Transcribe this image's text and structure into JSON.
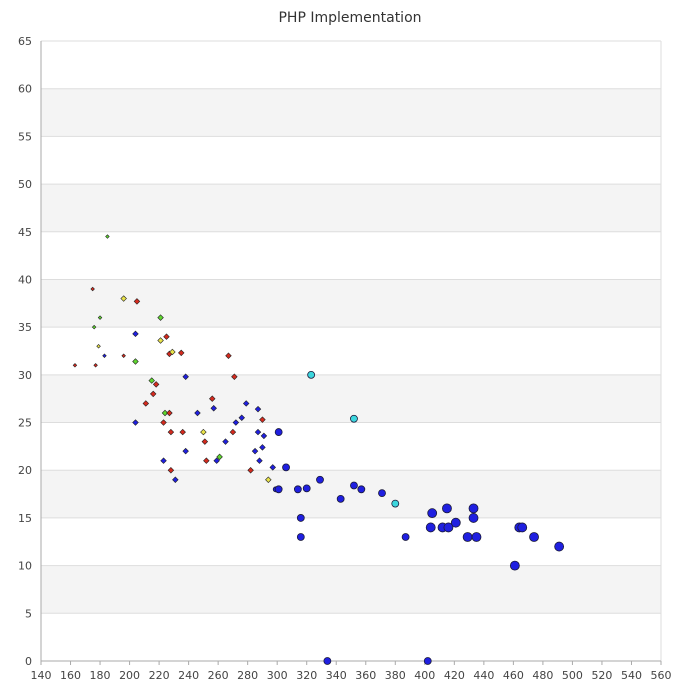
{
  "chart_data": {
    "type": "scatter",
    "title": "PHP Implementation",
    "xlabel": "",
    "ylabel": "",
    "xlim": [
      140,
      560
    ],
    "ylim": [
      0,
      65
    ],
    "x_ticks": [
      140,
      160,
      180,
      200,
      220,
      240,
      260,
      280,
      300,
      320,
      340,
      360,
      380,
      400,
      420,
      440,
      460,
      480,
      500,
      520,
      540,
      560
    ],
    "y_ticks": [
      0,
      5,
      10,
      15,
      20,
      25,
      30,
      35,
      40,
      45,
      50,
      55,
      60,
      65
    ],
    "grid": "horizontal bands",
    "colors": {
      "band": "#f4f4f4",
      "gridline": "#dddddd",
      "axis": "#aaaaaa",
      "blue": "#1f1fe0",
      "cyan": "#3cd6dd",
      "red": "#d42a1e",
      "green": "#5ed62e",
      "yellow": "#e9e34a"
    },
    "points": [
      {
        "x": 185,
        "y": 44.5,
        "size": 1,
        "color": "green"
      },
      {
        "x": 175,
        "y": 39,
        "size": 1,
        "color": "red"
      },
      {
        "x": 196,
        "y": 38,
        "size": 2,
        "color": "yellow"
      },
      {
        "x": 205,
        "y": 37.7,
        "size": 2,
        "color": "red"
      },
      {
        "x": 180,
        "y": 36,
        "size": 1,
        "color": "green"
      },
      {
        "x": 176,
        "y": 35,
        "size": 1,
        "color": "green"
      },
      {
        "x": 221,
        "y": 36,
        "size": 2,
        "color": "green"
      },
      {
        "x": 204,
        "y": 34.3,
        "size": 2,
        "color": "blue"
      },
      {
        "x": 225,
        "y": 34,
        "size": 2,
        "color": "red"
      },
      {
        "x": 221,
        "y": 33.6,
        "size": 2,
        "color": "yellow"
      },
      {
        "x": 179,
        "y": 33,
        "size": 1,
        "color": "yellow"
      },
      {
        "x": 183,
        "y": 32,
        "size": 1,
        "color": "blue"
      },
      {
        "x": 196,
        "y": 32,
        "size": 1,
        "color": "red"
      },
      {
        "x": 227,
        "y": 32.2,
        "size": 2,
        "color": "red"
      },
      {
        "x": 229,
        "y": 32.4,
        "size": 2,
        "color": "yellow"
      },
      {
        "x": 235,
        "y": 32.3,
        "size": 2,
        "color": "red"
      },
      {
        "x": 267,
        "y": 32,
        "size": 2,
        "color": "red"
      },
      {
        "x": 204,
        "y": 31.4,
        "size": 2,
        "color": "green"
      },
      {
        "x": 163,
        "y": 31,
        "size": 1,
        "color": "red"
      },
      {
        "x": 177,
        "y": 31,
        "size": 1,
        "color": "red"
      },
      {
        "x": 271,
        "y": 29.8,
        "size": 2,
        "color": "red"
      },
      {
        "x": 238,
        "y": 29.8,
        "size": 2,
        "color": "blue"
      },
      {
        "x": 215,
        "y": 29.4,
        "size": 2,
        "color": "green"
      },
      {
        "x": 218,
        "y": 29,
        "size": 2,
        "color": "red"
      },
      {
        "x": 216,
        "y": 28,
        "size": 2,
        "color": "red"
      },
      {
        "x": 211,
        "y": 27,
        "size": 2,
        "color": "red"
      },
      {
        "x": 256,
        "y": 27.5,
        "size": 2,
        "color": "red"
      },
      {
        "x": 279,
        "y": 27,
        "size": 2,
        "color": "blue"
      },
      {
        "x": 257,
        "y": 26.5,
        "size": 2,
        "color": "blue"
      },
      {
        "x": 287,
        "y": 26.4,
        "size": 2,
        "color": "blue"
      },
      {
        "x": 224,
        "y": 26,
        "size": 2,
        "color": "green"
      },
      {
        "x": 227,
        "y": 26,
        "size": 2,
        "color": "red"
      },
      {
        "x": 246,
        "y": 26,
        "size": 2,
        "color": "blue"
      },
      {
        "x": 276,
        "y": 25.5,
        "size": 2,
        "color": "blue"
      },
      {
        "x": 290,
        "y": 25.3,
        "size": 2,
        "color": "red"
      },
      {
        "x": 272,
        "y": 25,
        "size": 2,
        "color": "blue"
      },
      {
        "x": 204,
        "y": 25,
        "size": 2,
        "color": "blue"
      },
      {
        "x": 223,
        "y": 25,
        "size": 2,
        "color": "red"
      },
      {
        "x": 228,
        "y": 24,
        "size": 2,
        "color": "red"
      },
      {
        "x": 236,
        "y": 24,
        "size": 2,
        "color": "red"
      },
      {
        "x": 250,
        "y": 24,
        "size": 2,
        "color": "yellow"
      },
      {
        "x": 270,
        "y": 24,
        "size": 2,
        "color": "red"
      },
      {
        "x": 287,
        "y": 24,
        "size": 2,
        "color": "blue"
      },
      {
        "x": 301,
        "y": 24,
        "size": 4,
        "color": "blue"
      },
      {
        "x": 291,
        "y": 23.6,
        "size": 2,
        "color": "blue"
      },
      {
        "x": 251,
        "y": 23,
        "size": 2,
        "color": "red"
      },
      {
        "x": 265,
        "y": 23,
        "size": 2,
        "color": "blue"
      },
      {
        "x": 290,
        "y": 22.4,
        "size": 2,
        "color": "blue"
      },
      {
        "x": 238,
        "y": 22,
        "size": 2,
        "color": "blue"
      },
      {
        "x": 285,
        "y": 22,
        "size": 2,
        "color": "blue"
      },
      {
        "x": 261,
        "y": 21.4,
        "size": 2,
        "color": "green"
      },
      {
        "x": 223,
        "y": 21,
        "size": 2,
        "color": "blue"
      },
      {
        "x": 252,
        "y": 21,
        "size": 2,
        "color": "red"
      },
      {
        "x": 259,
        "y": 21,
        "size": 2,
        "color": "blue"
      },
      {
        "x": 288,
        "y": 21,
        "size": 2,
        "color": "blue"
      },
      {
        "x": 306,
        "y": 20.3,
        "size": 4,
        "color": "blue"
      },
      {
        "x": 297,
        "y": 20.3,
        "size": 2,
        "color": "blue"
      },
      {
        "x": 228,
        "y": 20,
        "size": 2,
        "color": "red"
      },
      {
        "x": 282,
        "y": 20,
        "size": 2,
        "color": "red"
      },
      {
        "x": 231,
        "y": 19,
        "size": 2,
        "color": "blue"
      },
      {
        "x": 294,
        "y": 19,
        "size": 2,
        "color": "yellow"
      },
      {
        "x": 329,
        "y": 19,
        "size": 4,
        "color": "blue"
      },
      {
        "x": 299,
        "y": 18,
        "size": 3,
        "color": "blue"
      },
      {
        "x": 301,
        "y": 18,
        "size": 4,
        "color": "blue"
      },
      {
        "x": 314,
        "y": 18,
        "size": 4,
        "color": "blue"
      },
      {
        "x": 320,
        "y": 18.1,
        "size": 4,
        "color": "blue"
      },
      {
        "x": 352,
        "y": 18.4,
        "size": 4,
        "color": "blue"
      },
      {
        "x": 357,
        "y": 18,
        "size": 4,
        "color": "blue"
      },
      {
        "x": 371,
        "y": 17.6,
        "size": 4,
        "color": "blue"
      },
      {
        "x": 343,
        "y": 17,
        "size": 4,
        "color": "blue"
      },
      {
        "x": 380,
        "y": 16.5,
        "size": 4,
        "color": "cyan"
      },
      {
        "x": 415,
        "y": 16,
        "size": 5,
        "color": "blue"
      },
      {
        "x": 433,
        "y": 16,
        "size": 5,
        "color": "blue"
      },
      {
        "x": 405,
        "y": 15.5,
        "size": 5,
        "color": "blue"
      },
      {
        "x": 316,
        "y": 15,
        "size": 4,
        "color": "blue"
      },
      {
        "x": 433,
        "y": 15,
        "size": 5,
        "color": "blue"
      },
      {
        "x": 421,
        "y": 14.5,
        "size": 5,
        "color": "blue"
      },
      {
        "x": 404,
        "y": 14,
        "size": 5,
        "color": "blue"
      },
      {
        "x": 412,
        "y": 14,
        "size": 5,
        "color": "blue"
      },
      {
        "x": 416,
        "y": 14,
        "size": 5,
        "color": "blue"
      },
      {
        "x": 464,
        "y": 14,
        "size": 5,
        "color": "blue"
      },
      {
        "x": 466,
        "y": 14,
        "size": 5,
        "color": "blue"
      },
      {
        "x": 316,
        "y": 13,
        "size": 4,
        "color": "blue"
      },
      {
        "x": 387,
        "y": 13,
        "size": 4,
        "color": "blue"
      },
      {
        "x": 429,
        "y": 13,
        "size": 5,
        "color": "blue"
      },
      {
        "x": 435,
        "y": 13,
        "size": 5,
        "color": "blue"
      },
      {
        "x": 474,
        "y": 13,
        "size": 5,
        "color": "blue"
      },
      {
        "x": 491,
        "y": 12,
        "size": 5,
        "color": "blue"
      },
      {
        "x": 461,
        "y": 10,
        "size": 5,
        "color": "blue"
      },
      {
        "x": 323,
        "y": 30,
        "size": 4,
        "color": "cyan"
      },
      {
        "x": 352,
        "y": 25.4,
        "size": 4,
        "color": "cyan"
      },
      {
        "x": 334,
        "y": 0,
        "size": 4,
        "color": "blue"
      },
      {
        "x": 402,
        "y": 0,
        "size": 4,
        "color": "blue"
      }
    ]
  }
}
